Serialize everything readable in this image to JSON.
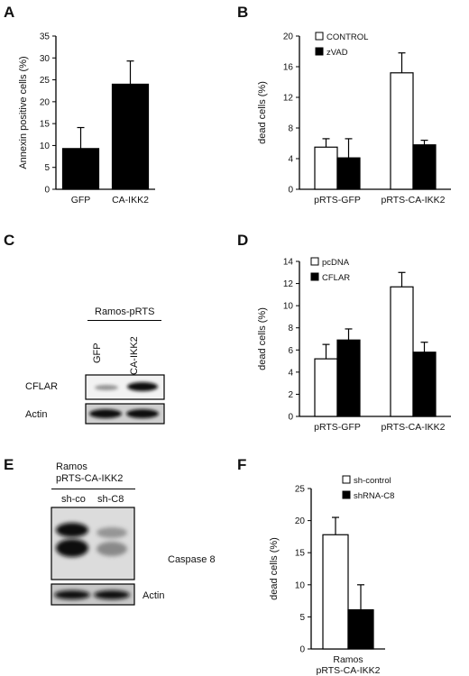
{
  "panels": {
    "a": {
      "letter": "A"
    },
    "b": {
      "letter": "B"
    },
    "c": {
      "letter": "C"
    },
    "d": {
      "letter": "D"
    },
    "e": {
      "letter": "E"
    },
    "f": {
      "letter": "F"
    }
  },
  "chart_data": [
    {
      "panel": "A",
      "type": "bar",
      "categories": [
        "GFP",
        "CA-IKK2"
      ],
      "series": [
        {
          "values": [
            9.3,
            24.0
          ],
          "errors": [
            4.8,
            5.3
          ],
          "color": "#000000"
        }
      ],
      "xlabel": "",
      "ylabel": "Annexin positive cells (%)",
      "ylim": [
        0,
        35
      ],
      "yticks": [
        0,
        5,
        10,
        15,
        20,
        25,
        30,
        35
      ],
      "legend": "none"
    },
    {
      "panel": "B",
      "type": "bar",
      "categories": [
        "pRTS-GFP",
        "pRTS-CA-IKK2"
      ],
      "series": [
        {
          "name": "CONTROL",
          "values": [
            5.5,
            15.2
          ],
          "errors": [
            1.1,
            2.6
          ],
          "color": "#ffffff"
        },
        {
          "name": "zVAD",
          "values": [
            4.1,
            5.8
          ],
          "errors": [
            2.5,
            0.6
          ],
          "color": "#000000"
        }
      ],
      "xlabel": "",
      "ylabel": "dead cells (%)",
      "ylim": [
        0,
        20
      ],
      "yticks": [
        0,
        4,
        8,
        12,
        16,
        20
      ],
      "legend": "top-left"
    },
    {
      "panel": "D",
      "type": "bar",
      "categories": [
        "pRTS-GFP",
        "pRTS-CA-IKK2"
      ],
      "series": [
        {
          "name": "pcDNA",
          "values": [
            5.2,
            11.7
          ],
          "errors": [
            1.3,
            1.3
          ],
          "color": "#ffffff"
        },
        {
          "name": "CFLAR",
          "values": [
            6.9,
            5.8
          ],
          "errors": [
            1.0,
            0.9
          ],
          "color": "#000000"
        }
      ],
      "xlabel": "",
      "ylabel": "dead cells (%)",
      "ylim": [
        0,
        14
      ],
      "yticks": [
        0,
        2,
        4,
        6,
        8,
        10,
        12,
        14
      ],
      "legend": "top-left"
    },
    {
      "panel": "F",
      "type": "bar",
      "categories": [
        "Ramos\npRTS-CA-IKK2"
      ],
      "series": [
        {
          "name": "sh-control",
          "values": [
            17.8
          ],
          "errors": [
            2.7
          ],
          "color": "#ffffff"
        },
        {
          "name": "shRNA-C8",
          "values": [
            6.1
          ],
          "errors": [
            3.9
          ],
          "color": "#000000"
        }
      ],
      "xlabel": "",
      "ylabel": "dead cells (%)",
      "ylim": [
        0,
        25
      ],
      "yticks": [
        0,
        5,
        10,
        15,
        20,
        25
      ],
      "legend": "top-right"
    }
  ],
  "blot_c": {
    "header": "Ramos-pRTS",
    "lanes": [
      "GFP",
      "CA-IKK2"
    ],
    "rows": [
      "CFLAR",
      "Actin"
    ]
  },
  "blot_e": {
    "header_line1": "Ramos",
    "header_line2": "pRTS-CA-IKK2",
    "lanes": [
      "sh-co",
      "sh-C8"
    ],
    "rows": [
      "Caspase 8",
      "Actin"
    ]
  }
}
